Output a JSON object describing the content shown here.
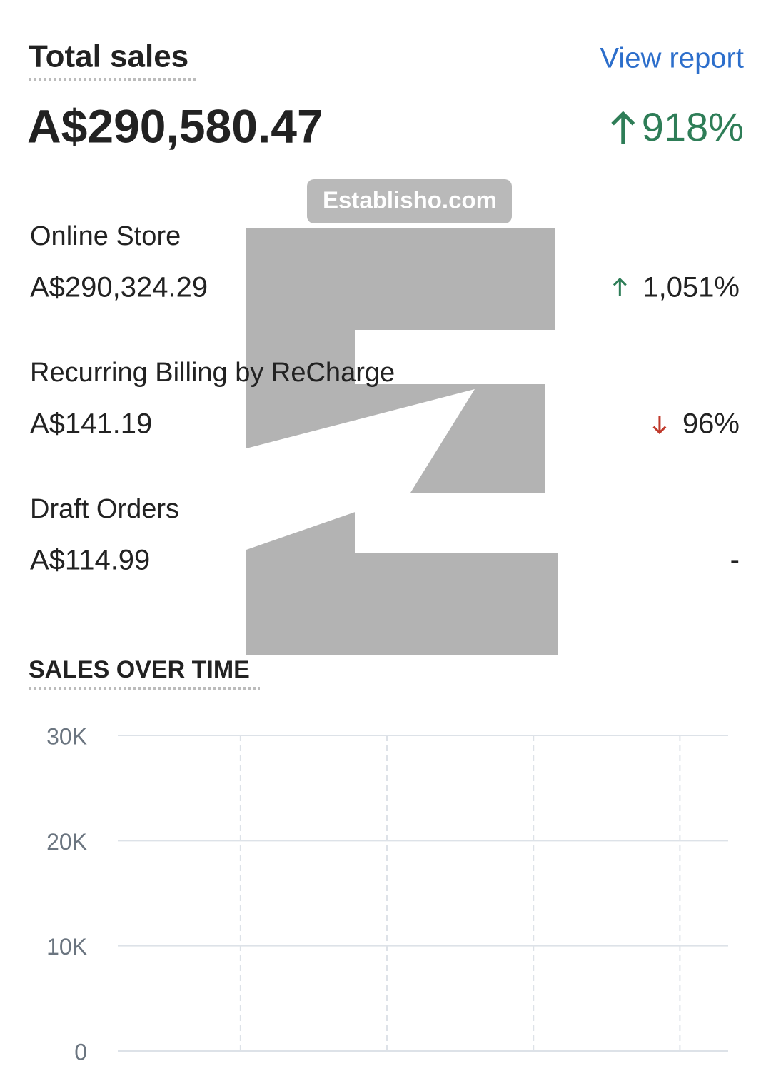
{
  "header": {
    "title": "Total sales",
    "link": "View report",
    "total": "A$290,580.47",
    "change": "918%",
    "direction": "up"
  },
  "watermark": "Establisho.com",
  "channels": [
    {
      "name": "Online Store",
      "amount": "A$290,324.29",
      "change": "1,051%",
      "direction": "up"
    },
    {
      "name": "Recurring Billing by ReCharge",
      "amount": "A$141.19",
      "change": "96%",
      "direction": "down"
    },
    {
      "name": "Draft Orders",
      "amount": "A$114.99",
      "change": "-",
      "direction": null
    }
  ],
  "chart_data": {
    "type": "line",
    "title": "SALES OVER TIME",
    "categories": [
      null,
      null,
      null,
      null,
      null,
      null,
      null,
      null,
      null,
      null,
      null,
      null,
      null,
      null,
      null,
      null,
      null,
      null,
      null,
      null,
      null,
      null,
      null,
      null,
      null,
      null,
      null,
      null,
      null,
      null
    ],
    "series": [
      {
        "color": "#3f9b9b",
        "style": "solid",
        "values": [
          7900,
          7800,
          8200,
          10900,
          10200,
          7700,
          9800,
          17600,
          13000,
          12000,
          9800,
          9000,
          7500,
          6600,
          5800,
          8300,
          5900,
          5200,
          5800,
          6200,
          4500,
          7700,
          8600,
          7800,
          8500,
          10400,
          10400,
          22100,
          15600,
          19300
        ]
      },
      {
        "color": "#9aa3ad",
        "style": "dotted",
        "values": [
          1300,
          1500,
          1600,
          1200,
          1300,
          1400,
          1100,
          900,
          1000,
          1000,
          1000,
          900,
          800,
          1200,
          900,
          1300,
          1200,
          1000,
          900,
          700,
          900,
          1000,
          1000,
          900,
          1100,
          600,
          700,
          900,
          1200,
          900
        ]
      }
    ],
    "ylim": [
      0,
      30000
    ],
    "yticks": [
      {
        "value": 0,
        "label": "0"
      },
      {
        "value": 10000,
        "label": "10K"
      },
      {
        "value": 20000,
        "label": "20K"
      },
      {
        "value": 30000,
        "label": "30K"
      }
    ],
    "grid": true
  }
}
